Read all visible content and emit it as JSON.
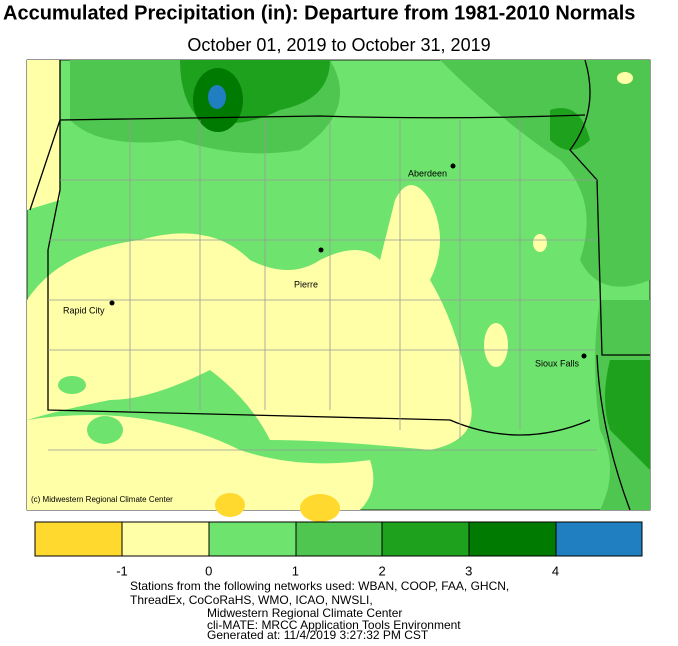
{
  "header": {
    "title": "Accumulated Precipitation (in): Departure from 1981-2010 Normals",
    "subtitle": "October 01, 2019 to October 31, 2019"
  },
  "map": {
    "credit": "(c) Midwestern Regional Climate Center",
    "cities": [
      {
        "name": "Aberdeen"
      },
      {
        "name": "Pierre"
      },
      {
        "name": "Rapid City"
      },
      {
        "name": "Sioux Falls"
      }
    ]
  },
  "legend": {
    "ticks": [
      -1,
      0,
      1,
      2,
      3,
      4
    ]
  },
  "footer": {
    "lines": [
      "Stations from the following networks used: WBAN, COOP, FAA, GHCN,",
      "ThreadEx, CoCoRaHS, WMO, ICAO, NWSLI,",
      "Midwestern Regional Climate Center",
      "cli-MATE: MRCC Application Tools Environment",
      "Generated at: 11/4/2019 3:27:32 PM CST"
    ]
  }
}
